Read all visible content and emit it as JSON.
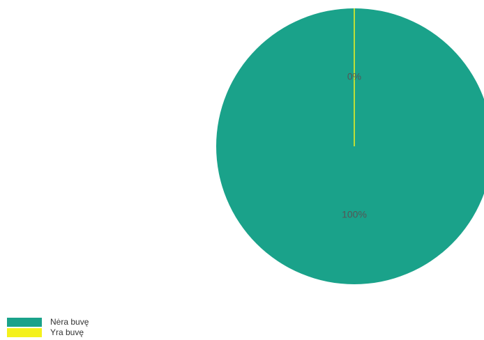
{
  "chart_data": {
    "type": "pie",
    "title": "",
    "categories": [
      "Nėra buvę",
      "Yra buvę"
    ],
    "values": [
      100,
      0
    ],
    "slice_labels": [
      "100%",
      "0%"
    ],
    "colors": [
      "#1aa28a",
      "#f4f11c"
    ],
    "legend_position": "bottom-left"
  }
}
